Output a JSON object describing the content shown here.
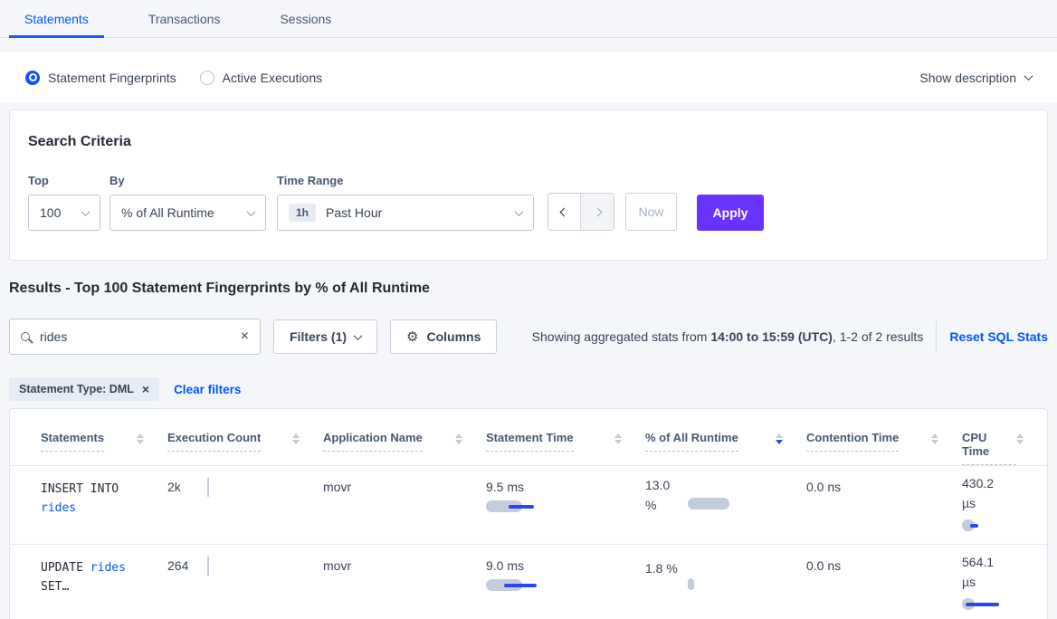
{
  "tabs": [
    {
      "label": "Statements",
      "active": true
    },
    {
      "label": "Transactions",
      "active": false
    },
    {
      "label": "Sessions",
      "active": false
    }
  ],
  "subnav": {
    "radios": [
      {
        "label": "Statement Fingerprints",
        "selected": true
      },
      {
        "label": "Active Executions",
        "selected": false
      }
    ],
    "show_description": "Show description"
  },
  "search_criteria": {
    "title": "Search Criteria",
    "top": {
      "label": "Top",
      "value": "100"
    },
    "by": {
      "label": "By",
      "value": "% of All Runtime"
    },
    "time_range": {
      "label": "Time Range",
      "badge": "1h",
      "value": "Past Hour"
    },
    "now_label": "Now",
    "apply_label": "Apply"
  },
  "results": {
    "heading": "Results - Top 100 Statement Fingerprints by % of All Runtime",
    "search_value": "rides",
    "filters_label": "Filters (1)",
    "columns_label": "Columns",
    "stats_prefix": "Showing aggregated stats from ",
    "stats_range": "14:00 to 15:59 (UTC)",
    "stats_suffix": ", 1-2 of 2 results",
    "reset_label": "Reset SQL Stats",
    "filter_chip": "Statement Type: DML",
    "clear_filters": "Clear filters"
  },
  "table": {
    "columns": [
      "Statements",
      "Execution Count",
      "Application Name",
      "Statement Time",
      "% of All Runtime",
      "Contention Time",
      "CPU Time"
    ],
    "sorted_column": "% of All Runtime",
    "sort_direction": "desc",
    "rows": [
      {
        "statement_parts": [
          {
            "text": "INSERT INTO ",
            "link": false
          },
          {
            "text": "rides",
            "link": true
          }
        ],
        "execution_count": "2k",
        "application_name": "movr",
        "statement_time": "9.5 ms",
        "pct_all_runtime": "13.0 %",
        "contention_time": "0.0 ns",
        "cpu_time": "430.2 µs",
        "bars": {
          "statement_time": {
            "gray": 40,
            "blue_start": 25,
            "blue_width": 28
          },
          "pct": {
            "gray": 46,
            "blue_start": 0,
            "blue_width": 0
          },
          "cpu": {
            "gray": 14,
            "blue_start": 9,
            "blue_width": 9
          }
        }
      },
      {
        "statement_parts": [
          {
            "text": "UPDATE ",
            "link": false
          },
          {
            "text": "rides",
            "link": true
          },
          {
            "text": " SET…",
            "link": false
          }
        ],
        "execution_count": "264",
        "application_name": "movr",
        "statement_time": "9.0 ms",
        "pct_all_runtime": "1.8 %",
        "contention_time": "0.0 ns",
        "cpu_time": "564.1 µs",
        "bars": {
          "statement_time": {
            "gray": 40,
            "blue_start": 20,
            "blue_width": 36
          },
          "pct": {
            "gray": 7,
            "blue_start": 0,
            "blue_width": 0
          },
          "cpu": {
            "gray": 14,
            "blue_start": 4,
            "blue_width": 37
          }
        }
      }
    ]
  },
  "colors": {
    "accent_blue": "#0055ff",
    "apply_purple": "#6933ff",
    "bar_gray": "#c4cbdb",
    "bar_blue": "#2946f0",
    "page_background": "#f5f6fa"
  }
}
